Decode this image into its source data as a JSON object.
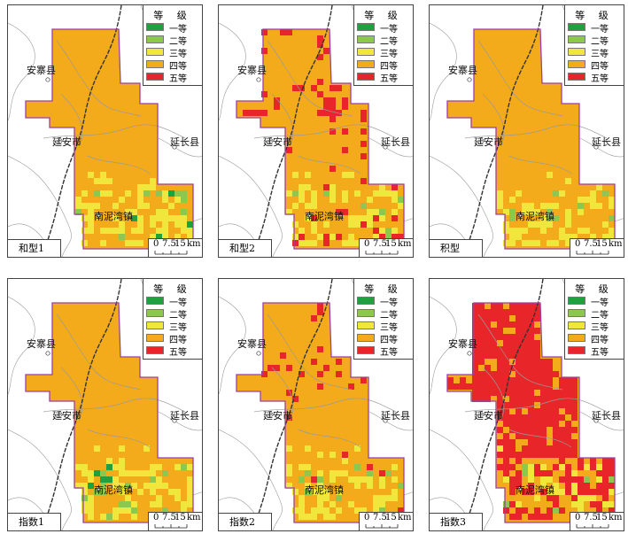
{
  "legend": {
    "title": "等 级",
    "items": [
      {
        "label": "一等",
        "color": "#1ea23f"
      },
      {
        "label": "二等",
        "color": "#8cc84e"
      },
      {
        "label": "三等",
        "color": "#f0e63c"
      },
      {
        "label": "四等",
        "color": "#f3ab1c"
      },
      {
        "label": "五等",
        "color": "#e8262a"
      }
    ]
  },
  "places": {
    "ansai": "安寨县",
    "yanan": "延安市",
    "yanchang": "延长县",
    "nanniwan": "南泥湾镇"
  },
  "scale": {
    "t0": "0",
    "t1": "7.5",
    "t2": "15",
    "unit": "km"
  },
  "panels": [
    {
      "caption": "和型1",
      "red_density": 0.0
    },
    {
      "caption": "和型2",
      "red_density": 0.22
    },
    {
      "caption": "积型",
      "red_density": 0.0
    },
    {
      "caption": "指数1",
      "red_density": 0.0
    },
    {
      "caption": "指数2",
      "red_density": 0.08
    },
    {
      "caption": "指数3",
      "red_density": 0.85
    }
  ],
  "colors": {
    "boundary": "#9b3fa6",
    "base": "#f3ab1c",
    "river": "#9a9a9a",
    "road": "#333333"
  }
}
